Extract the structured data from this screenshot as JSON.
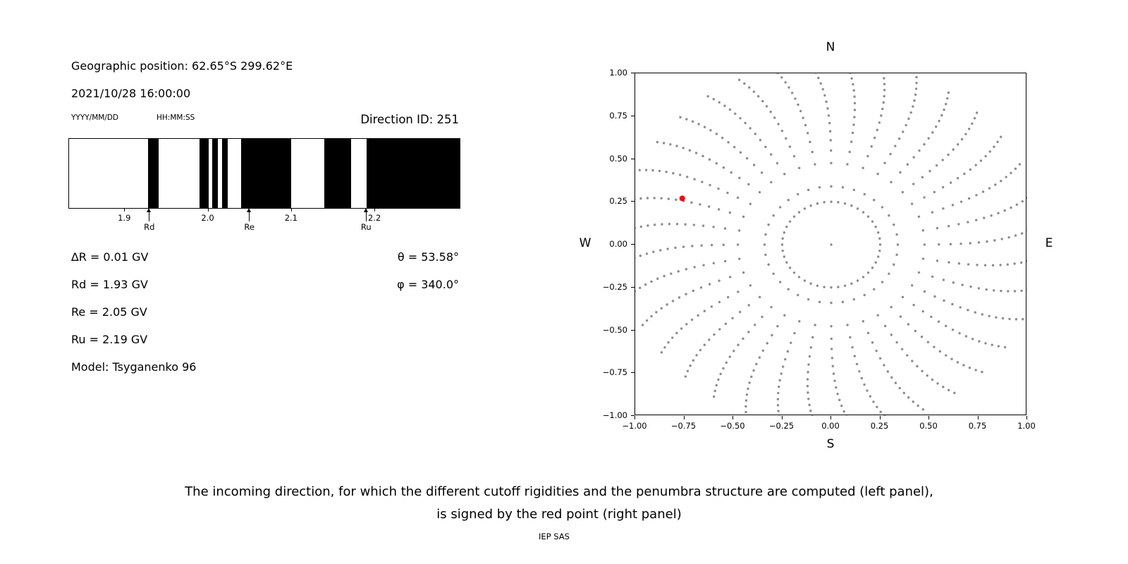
{
  "header": {
    "geo_position": "Geographic position: 62.65°S 299.62°E",
    "datetime": "2021/10/28 16:00:00",
    "date_format_label": "YYYY/MM/DD",
    "time_format_label": "HH:MM:SS",
    "direction_id": "Direction ID: 251"
  },
  "info": {
    "lines_left": [
      "∆R = 0.01 GV",
      "Rd = 1.93 GV",
      "Re = 2.05 GV",
      "Ru = 2.19 GV",
      "Model: Tsyganenko 96"
    ],
    "lines_right": [
      "θ = 53.58°",
      "φ = 340.0°"
    ]
  },
  "caption": {
    "line1": "The incoming direction, for which the different cutoff rigidities and the penumbra structure are computed (left panel),",
    "line2": "is signed by the red point (right panel)"
  },
  "footer": "IEP SAS",
  "chart_data": [
    {
      "type": "bar",
      "name": "penumbra-structure",
      "description": "Penumbra structure: black bands mark forbidden rigidity intervals in GV between lower cutoff Rd and upper cutoff Ru",
      "x_range_gv": [
        1.833,
        2.303
      ],
      "x_ticks": [
        {
          "value": 1.9,
          "label": "1.9"
        },
        {
          "value": 2.0,
          "label": "2.0"
        },
        {
          "value": 2.1,
          "label": "2.1"
        },
        {
          "value": 2.2,
          "label": "2.2"
        }
      ],
      "bands_gv": [
        [
          1.928,
          1.941
        ],
        [
          1.99,
          2.001
        ],
        [
          2.005,
          2.012
        ],
        [
          2.017,
          2.024
        ],
        [
          2.04,
          2.1
        ],
        [
          2.14,
          2.172
        ],
        [
          2.191,
          2.303
        ]
      ],
      "markers": [
        {
          "label": "Rd",
          "value_gv": 1.93
        },
        {
          "label": "Re",
          "value_gv": 2.05
        },
        {
          "label": "Ru",
          "value_gv": 2.19
        }
      ],
      "band_color": "#000000"
    },
    {
      "type": "scatter",
      "name": "incoming-direction-map",
      "description": "Sky map of incoming directions (radial spokes of gray dots); red point marks direction ID 251",
      "xlim": [
        -1,
        1
      ],
      "ylim": [
        -1,
        1
      ],
      "x_ticks": [
        {
          "value": -1.0,
          "label": "−1.00"
        },
        {
          "value": -0.75,
          "label": "−0.75"
        },
        {
          "value": -0.5,
          "label": "−0.50"
        },
        {
          "value": -0.25,
          "label": "−0.25"
        },
        {
          "value": 0.0,
          "label": "0.00"
        },
        {
          "value": 0.25,
          "label": "0.25"
        },
        {
          "value": 0.5,
          "label": "0.50"
        },
        {
          "value": 0.75,
          "label": "0.75"
        },
        {
          "value": 1.0,
          "label": "1.00"
        }
      ],
      "y_ticks": [
        {
          "value": 1.0,
          "label": "1.00"
        },
        {
          "value": 0.75,
          "label": "0.75"
        },
        {
          "value": 0.5,
          "label": "0.50"
        },
        {
          "value": 0.25,
          "label": "0.25"
        },
        {
          "value": 0.0,
          "label": "0.00"
        },
        {
          "value": -0.25,
          "label": "−0.25"
        },
        {
          "value": -0.5,
          "label": "−0.50"
        },
        {
          "value": -0.75,
          "label": "−0.75"
        },
        {
          "value": -1.0,
          "label": "−1.00"
        }
      ],
      "compass": {
        "top": "N",
        "bottom": "S",
        "left": "W",
        "right": "E"
      },
      "dot_color": "#8c8c8c",
      "dot_radius_px": 1.7,
      "inner_ring": {
        "radius": 0.25,
        "dot_count": 44
      },
      "center_dot": true,
      "spokes": {
        "count": 36,
        "start_angle_deg": 0,
        "step_deg": 10,
        "r_min": 0.34,
        "r_max": 1.07,
        "dots_per_spoke": 16,
        "density_power": 0.62,
        "curvature_deg": 6
      },
      "red_point": {
        "x": -0.76,
        "y": 0.27,
        "color": "#ff0000",
        "radius_px": 4
      }
    }
  ]
}
